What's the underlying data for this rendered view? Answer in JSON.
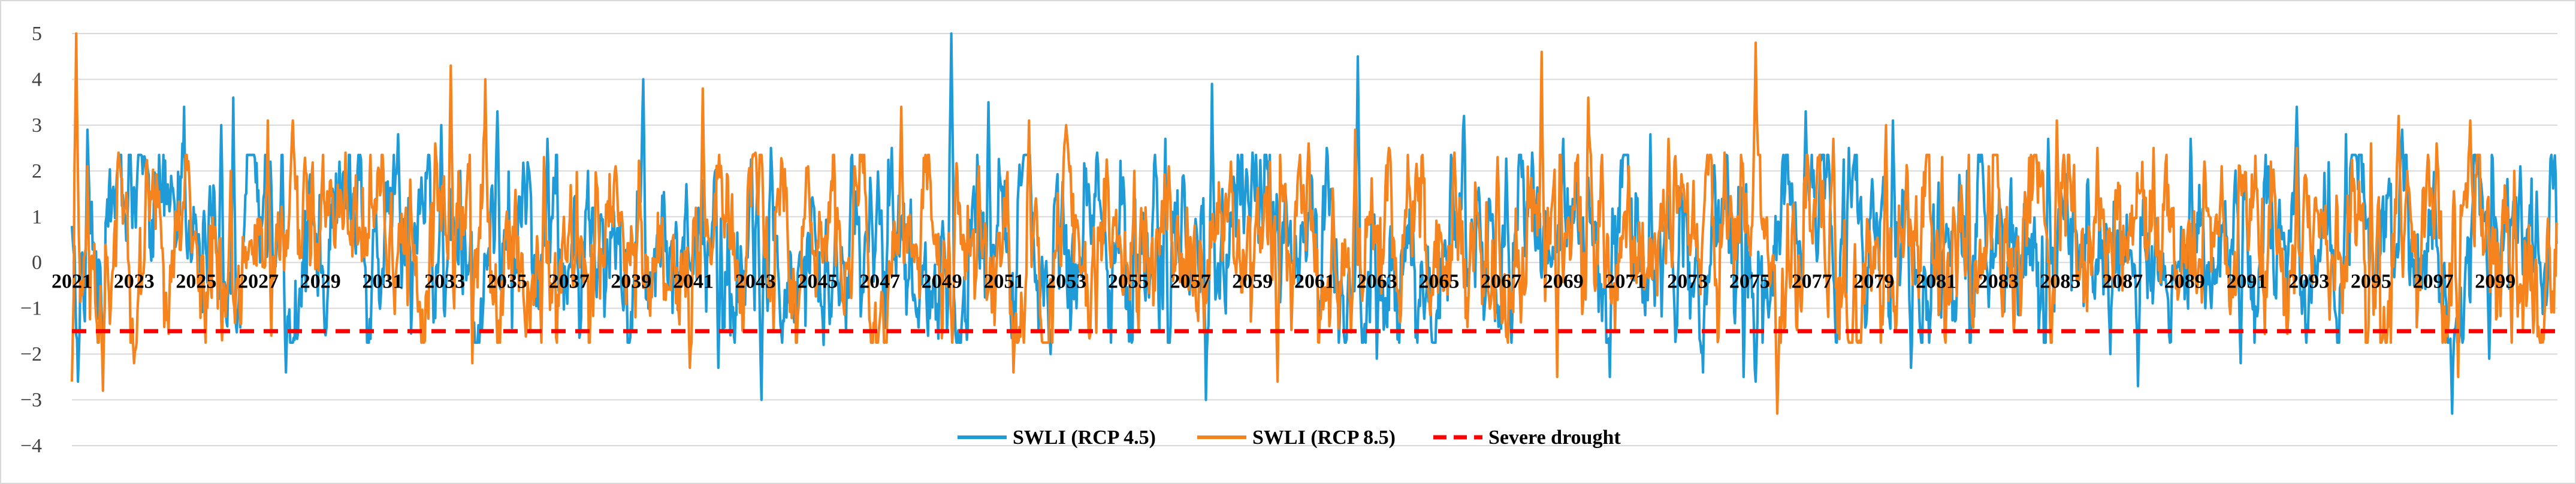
{
  "chart_data": {
    "type": "line",
    "title": "",
    "xlabel": "",
    "ylabel": "",
    "ylim": [
      -4,
      5
    ],
    "yticks": [
      -4,
      -3,
      -2,
      -1,
      0,
      1,
      2,
      3,
      4,
      5
    ],
    "ytick_labels": [
      "−4",
      "−3",
      "−2",
      "−1",
      "0",
      "1",
      "2",
      "3",
      "4",
      "5"
    ],
    "xlim": [
      2021,
      2101
    ],
    "xticks": [
      2021,
      2023,
      2025,
      2027,
      2029,
      2031,
      2033,
      2035,
      2037,
      2039,
      2041,
      2043,
      2045,
      2047,
      2049,
      2051,
      2053,
      2055,
      2057,
      2059,
      2061,
      2063,
      2065,
      2067,
      2069,
      2071,
      2073,
      2075,
      2077,
      2079,
      2081,
      2083,
      2085,
      2087,
      2089,
      2091,
      2093,
      2095,
      2097,
      2099
    ],
    "grid": "horizontal",
    "legend_position": "bottom-center",
    "series": [
      {
        "name": "SWLI (RCP 4.5)",
        "color": "#1f9bd7",
        "style": "solid",
        "generated": true,
        "seed": 17,
        "points_per_year": 36,
        "anchors": [
          [
            2021.2,
            -2.6
          ],
          [
            2021.5,
            2.9
          ],
          [
            2023.3,
            2.3
          ],
          [
            2024.6,
            3.4
          ],
          [
            2025.8,
            3.0
          ],
          [
            2026.2,
            3.6
          ],
          [
            2027.4,
            2.2
          ],
          [
            2027.9,
            -2.4
          ],
          [
            2029.6,
            2.2
          ],
          [
            2031.5,
            2.8
          ],
          [
            2032.9,
            3.0
          ],
          [
            2033.5,
            2.0
          ],
          [
            2034.7,
            3.3
          ],
          [
            2036.3,
            2.7
          ],
          [
            2037.6,
            2.0
          ],
          [
            2039.4,
            4.0
          ],
          [
            2041.8,
            -2.3
          ],
          [
            2043.2,
            -3.0
          ],
          [
            2043.5,
            2.5
          ],
          [
            2045.2,
            -1.8
          ],
          [
            2047.4,
            2.5
          ],
          [
            2049.3,
            5.0
          ],
          [
            2050.5,
            3.5
          ],
          [
            2052.5,
            -2.0
          ],
          [
            2054.0,
            2.4
          ],
          [
            2056.2,
            2.7
          ],
          [
            2057.7,
            3.9
          ],
          [
            2057.5,
            -3.0
          ],
          [
            2059.0,
            2.4
          ],
          [
            2061.4,
            2.5
          ],
          [
            2062.4,
            4.5
          ],
          [
            2063.0,
            -2.1
          ],
          [
            2065.8,
            3.2
          ],
          [
            2068.0,
            2.4
          ],
          [
            2069.0,
            2.7
          ],
          [
            2070.5,
            -2.5
          ],
          [
            2071.8,
            2.8
          ],
          [
            2073.5,
            -2.4
          ],
          [
            2074.8,
            -2.5
          ],
          [
            2075.2,
            -2.6
          ],
          [
            2076.8,
            3.3
          ],
          [
            2078.2,
            2.5
          ],
          [
            2079.6,
            3.1
          ],
          [
            2080.2,
            -2.3
          ],
          [
            2082.0,
            2.0
          ],
          [
            2084.6,
            2.7
          ],
          [
            2086.6,
            -2.0
          ],
          [
            2087.5,
            -2.7
          ],
          [
            2089.2,
            2.7
          ],
          [
            2090.8,
            -2.2
          ],
          [
            2091.7,
            2.1
          ],
          [
            2092.6,
            3.4
          ],
          [
            2094.2,
            2.8
          ],
          [
            2096.0,
            2.9
          ],
          [
            2097.6,
            -3.3
          ],
          [
            2098.8,
            -2.1
          ],
          [
            2099.8,
            2.1
          ]
        ]
      },
      {
        "name": "SWLI (RCP 8.5)",
        "color": "#f5841f",
        "style": "solid",
        "generated": true,
        "seed": 53,
        "points_per_year": 36,
        "anchors": [
          [
            2021.0,
            -2.6
          ],
          [
            2021.15,
            5.0
          ],
          [
            2021.5,
            2.1
          ],
          [
            2022.0,
            -2.8
          ],
          [
            2022.5,
            2.4
          ],
          [
            2023.0,
            -2.2
          ],
          [
            2026.1,
            2.0
          ],
          [
            2027.3,
            3.1
          ],
          [
            2028.1,
            3.1
          ],
          [
            2029.8,
            2.4
          ],
          [
            2032.7,
            2.6
          ],
          [
            2033.2,
            4.3
          ],
          [
            2033.9,
            -2.2
          ],
          [
            2034.3,
            4.0
          ],
          [
            2036.2,
            2.3
          ],
          [
            2038.5,
            2.1
          ],
          [
            2040.9,
            -2.3
          ],
          [
            2041.3,
            3.8
          ],
          [
            2043.0,
            2.4
          ],
          [
            2044.7,
            2.1
          ],
          [
            2046.2,
            2.1
          ],
          [
            2047.7,
            3.4
          ],
          [
            2050.2,
            2.1
          ],
          [
            2051.8,
            3.1
          ],
          [
            2051.3,
            -2.4
          ],
          [
            2053.0,
            3.0
          ],
          [
            2055.2,
            2.0
          ],
          [
            2056.3,
            2.1
          ],
          [
            2058.3,
            2.2
          ],
          [
            2059.8,
            -2.6
          ],
          [
            2060.8,
            2.6
          ],
          [
            2062.3,
            2.9
          ],
          [
            2063.4,
            2.5
          ],
          [
            2065.5,
            2.4
          ],
          [
            2066.9,
            2.3
          ],
          [
            2068.3,
            4.6
          ],
          [
            2068.8,
            -2.5
          ],
          [
            2069.8,
            3.6
          ],
          [
            2071.1,
            2.1
          ],
          [
            2072.4,
            2.7
          ],
          [
            2074.2,
            2.4
          ],
          [
            2075.2,
            4.8
          ],
          [
            2075.9,
            -3.3
          ],
          [
            2077.7,
            2.7
          ],
          [
            2079.4,
            3.0
          ],
          [
            2081.2,
            2.3
          ],
          [
            2082.7,
            2.1
          ],
          [
            2084.9,
            3.1
          ],
          [
            2086.2,
            2.5
          ],
          [
            2088.0,
            2.5
          ],
          [
            2090.2,
            2.1
          ],
          [
            2092.6,
            2.5
          ],
          [
            2095.0,
            2.6
          ],
          [
            2095.9,
            3.2
          ],
          [
            2097.1,
            2.6
          ],
          [
            2098.2,
            3.1
          ],
          [
            2097.8,
            -2.5
          ],
          [
            2099.6,
            2.0
          ]
        ]
      },
      {
        "name": "Severe drought",
        "color": "#ff0000",
        "style": "dashed",
        "value": -1.5
      }
    ]
  }
}
